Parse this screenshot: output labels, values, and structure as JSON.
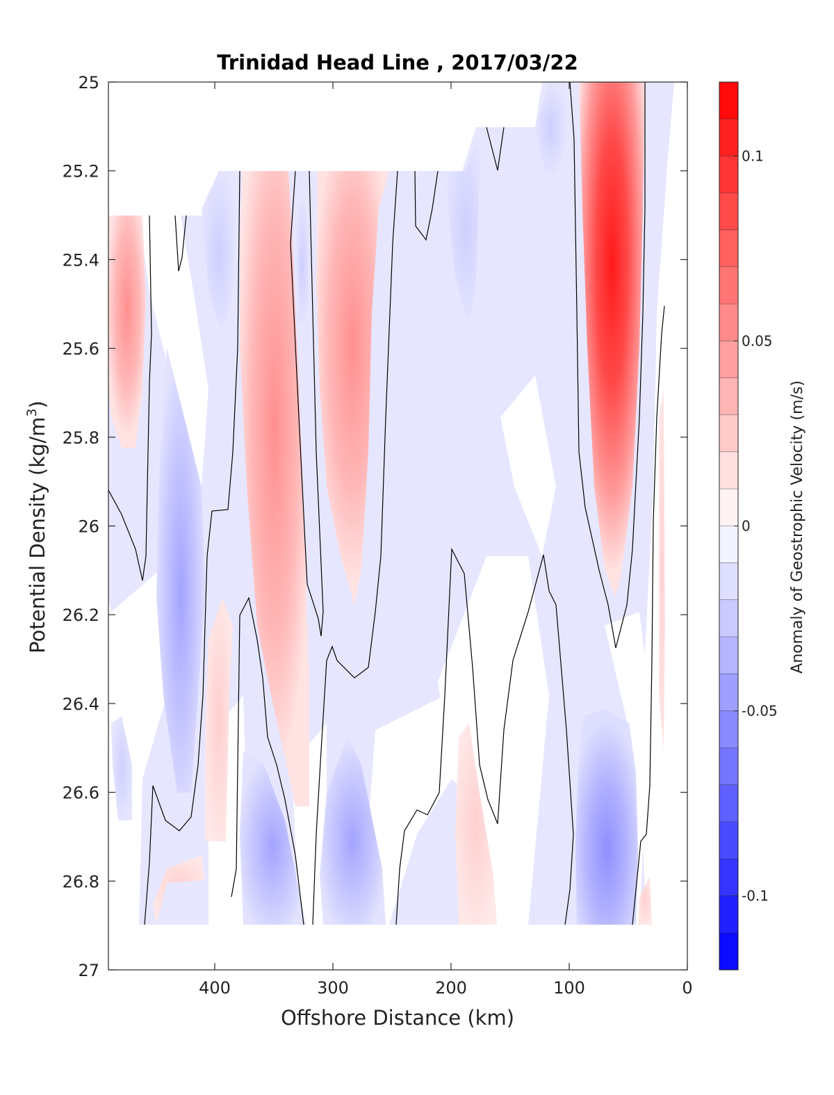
{
  "chart_data": {
    "type": "heatmap",
    "title": "Trinidad Head Line , 2017/03/22",
    "xlabel": "Offshore Distance (km)",
    "ylabel": "Potential Density (kg/m",
    "ylabel_sup": "3",
    "ylabel_close": ")",
    "colorbar_label": "Anomaly of Geostrophic Velocity (m/s)",
    "xlim": [
      490,
      0
    ],
    "ylim": [
      25,
      27
    ],
    "x_reversed": true,
    "y_reversed": true,
    "xticks": [
      400,
      300,
      200,
      100,
      0
    ],
    "xtick_labels": [
      "400",
      "300",
      "200",
      "100",
      "0"
    ],
    "yticks": [
      25,
      25.2,
      25.4,
      25.6,
      25.8,
      26,
      26.2,
      26.4,
      26.6,
      26.8,
      27
    ],
    "ytick_labels": [
      "25",
      "25.2",
      "25.4",
      "25.6",
      "25.8",
      "26",
      "26.2",
      "26.4",
      "26.6",
      "26.8",
      "27"
    ],
    "colorbar": {
      "clim": [
        -0.12,
        0.12
      ],
      "levels": 24,
      "ticks": [
        0.1,
        0.05,
        0,
        -0.05,
        -0.1
      ],
      "tick_labels": [
        "0.1",
        "0.05",
        "0",
        "-0.05",
        "-0.1"
      ],
      "positive_color": "#ff0000",
      "negative_color": "#0000ff",
      "zero_color": "#ffffff"
    },
    "contour_color": "#000000",
    "contour_level": 0,
    "data_extent": {
      "max_density": 26.9,
      "top_density_by_distance": [
        {
          "x_range": [
            490,
            412
          ],
          "sigma": 25.3
        },
        {
          "x_range": [
            412,
            192
          ],
          "sigma": 25.2
        },
        {
          "x_range": [
            192,
            133
          ],
          "sigma": 25.1
        },
        {
          "x_range": [
            133,
            0
          ],
          "sigma": 25.0
        }
      ]
    },
    "velocity_anomaly_features": [
      {
        "sign": "positive",
        "x": [
          490,
          455
        ],
        "sigma": [
          25.3,
          25.85
        ],
        "peak": 0.05
      },
      {
        "sign": "negative",
        "x": [
          455,
          410
        ],
        "sigma": [
          25.7,
          26.65
        ],
        "peak": -0.04
      },
      {
        "sign": "negative",
        "x": [
          405,
          378
        ],
        "sigma": [
          25.2,
          25.55
        ],
        "peak": -0.03
      },
      {
        "sign": "positive",
        "x": [
          380,
          325
        ],
        "sigma": [
          25.2,
          26.65
        ],
        "peak": 0.04
      },
      {
        "sign": "positive",
        "x": [
          318,
          255
        ],
        "sigma": [
          25.2,
          26.15
        ],
        "peak": 0.045
      },
      {
        "sign": "negative",
        "x": [
          200,
          150
        ],
        "sigma": [
          25.1,
          26.6
        ],
        "peak": -0.03
      },
      {
        "sign": "negative",
        "x": [
          380,
          330
        ],
        "sigma": [
          26.5,
          26.9
        ],
        "peak": -0.035
      },
      {
        "sign": "negative",
        "x": [
          310,
          260
        ],
        "sigma": [
          26.5,
          26.9
        ],
        "peak": -0.03
      },
      {
        "sign": "positive",
        "x": [
          410,
          375
        ],
        "sigma": [
          26.1,
          26.9
        ],
        "peak": 0.015
      },
      {
        "sign": "negative",
        "x": [
          135,
          95
        ],
        "sigma": [
          25.0,
          25.6
        ],
        "peak": -0.025
      },
      {
        "sign": "positive",
        "x": [
          100,
          30
        ],
        "sigma": [
          25.0,
          26.3
        ],
        "peak": 0.125
      },
      {
        "sign": "negative",
        "x": [
          110,
          40
        ],
        "sigma": [
          26.35,
          26.9
        ],
        "peak": -0.06
      },
      {
        "sign": "positive",
        "x": [
          200,
          160
        ],
        "sigma": [
          26.5,
          26.9
        ],
        "peak": 0.015
      }
    ]
  }
}
